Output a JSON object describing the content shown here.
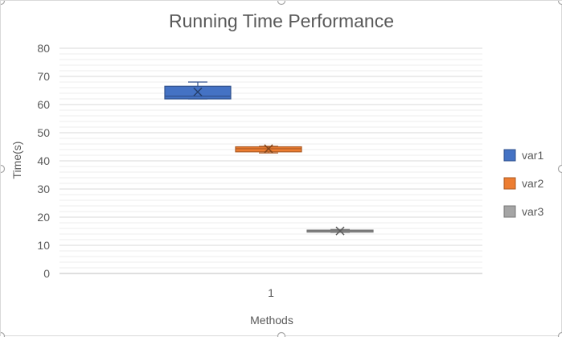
{
  "chart_data": {
    "type": "box",
    "title": "Running Time Performance",
    "xlabel": "Methods",
    "ylabel": "Time(s)",
    "categories": [
      "1"
    ],
    "ylim": [
      0,
      80
    ],
    "yticks": [
      0,
      10,
      20,
      30,
      40,
      50,
      60,
      70,
      80
    ],
    "major_grid": true,
    "minor_grid_step": 2,
    "legend_position": "right",
    "series": [
      {
        "name": "var1",
        "color": "#4472C4",
        "min": 62,
        "q1": 62,
        "median": 63,
        "q3": 66.5,
        "max": 68,
        "mean": 64.5
      },
      {
        "name": "var2",
        "color": "#ED7D31",
        "min": 42.8,
        "q1": 43.2,
        "median": 44.3,
        "q3": 45,
        "max": 45.2,
        "mean": 44.3
      },
      {
        "name": "var3",
        "color": "#A5A5A5",
        "min": 14.6,
        "q1": 14.7,
        "median": 15.1,
        "q3": 15.4,
        "max": 15.6,
        "mean": 15.1
      }
    ]
  }
}
